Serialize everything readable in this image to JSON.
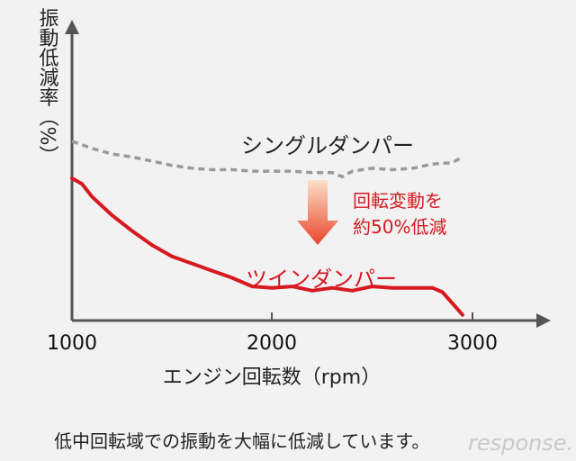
{
  "chart_data": {
    "type": "line",
    "ylabel": "振動低減率（%）",
    "xlabel": "エンジン回転数（rpm）",
    "x_ticks": [
      "1000",
      "2000",
      "3000"
    ],
    "xlim": [
      1000,
      3300
    ],
    "ylim": [
      0,
      100
    ],
    "y_ticks_shown": false,
    "grid": false,
    "series": [
      {
        "name": "シングルダンパー",
        "style": "dashed",
        "color": "#9a9a9a",
        "x": [
          1000,
          1100,
          1200,
          1300,
          1400,
          1500,
          1600,
          1700,
          1800,
          1900,
          2000,
          2100,
          2200,
          2300,
          2350,
          2400,
          2500,
          2600,
          2700,
          2800,
          2900,
          2950
        ],
        "y": [
          63,
          60.5,
          58.5,
          57.5,
          56,
          54.5,
          53.5,
          53,
          53,
          52.5,
          52.5,
          52.5,
          52,
          52,
          50.5,
          52.5,
          53.5,
          53,
          53.5,
          55,
          55.5,
          57.5
        ]
      },
      {
        "name": "ツインダンパー",
        "style": "solid",
        "color": "#d71920",
        "x": [
          1000,
          1050,
          1100,
          1200,
          1300,
          1400,
          1500,
          1600,
          1700,
          1800,
          1900,
          2000,
          2100,
          2200,
          2300,
          2400,
          2500,
          2600,
          2700,
          2800,
          2850,
          2900,
          2950
        ],
        "y": [
          50,
          48,
          43.5,
          37,
          31.5,
          26.5,
          22.5,
          20,
          17.5,
          15,
          12,
          11.5,
          12,
          10.5,
          11.5,
          10.5,
          12,
          11.5,
          11.5,
          11.5,
          10,
          6,
          2
        ]
      }
    ],
    "annotation": [
      "回転変動を",
      "約50%低減"
    ],
    "colors": {
      "arrow_top": "#fce0c8",
      "arrow_bottom": "#e8452a",
      "axis": "#555555"
    }
  },
  "caption": "低中回転域での振動を大幅に低減しています。",
  "watermark": "response."
}
